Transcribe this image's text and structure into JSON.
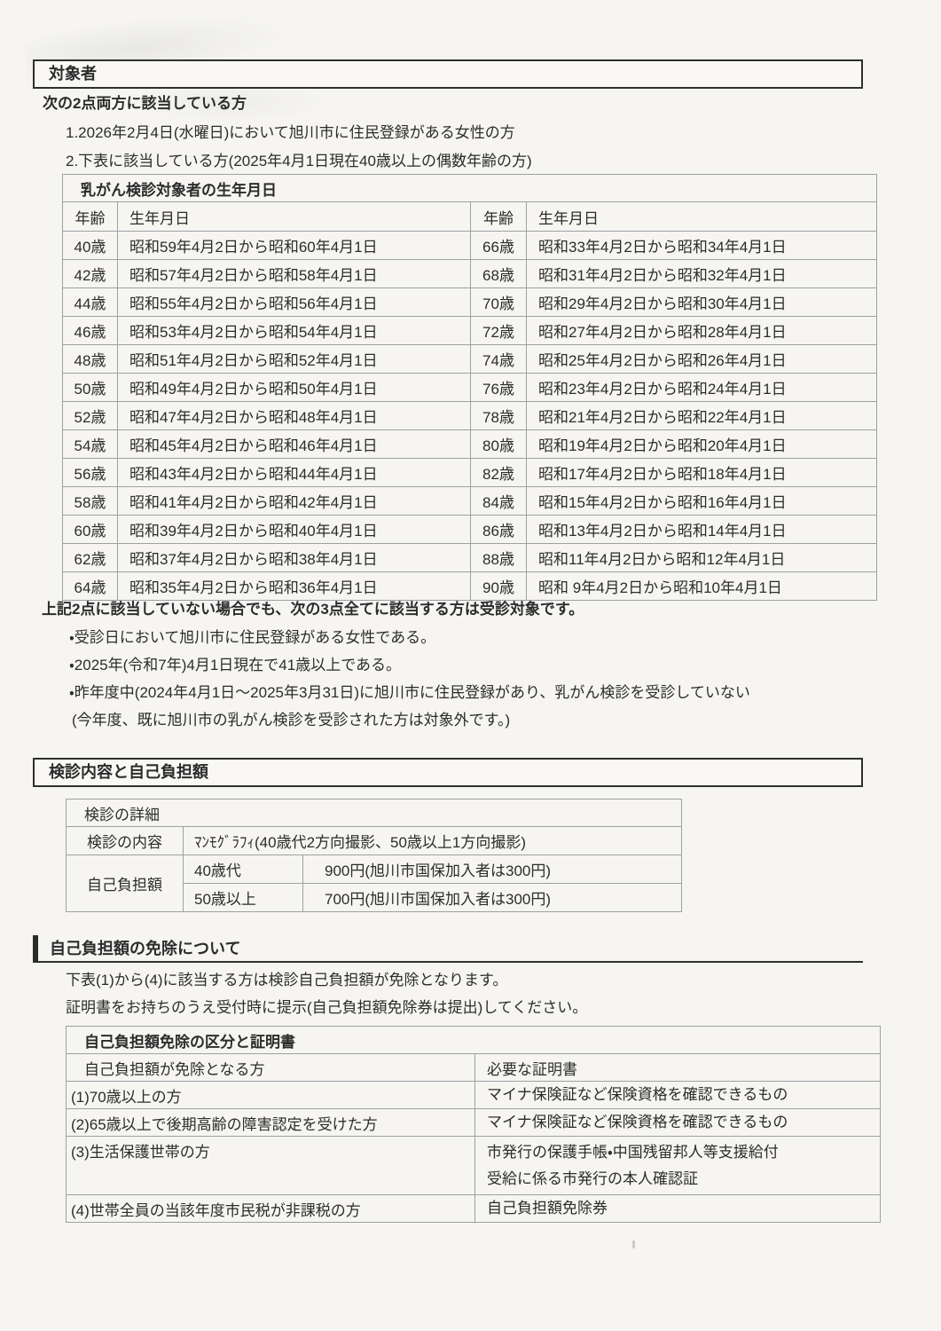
{
  "section1": {
    "heading": "対象者",
    "intro": "次の2点両方に該当している方",
    "items": [
      "1.2026年2月4日(水曜日)において旭川市に住民登録がある女性の方",
      "2.下表に該当している方(2025年4月1日現在40歳以上の偶数年齢の方)"
    ],
    "table": {
      "title": "乳がん検診対象者の生年月日",
      "headers": [
        "年齢",
        "生年月日",
        "年齢",
        "生年月日"
      ],
      "rows": [
        [
          "40歳",
          "昭和59年4月2日から昭和60年4月1日",
          "66歳",
          "昭和33年4月2日から昭和34年4月1日"
        ],
        [
          "42歳",
          "昭和57年4月2日から昭和58年4月1日",
          "68歳",
          "昭和31年4月2日から昭和32年4月1日"
        ],
        [
          "44歳",
          "昭和55年4月2日から昭和56年4月1日",
          "70歳",
          "昭和29年4月2日から昭和30年4月1日"
        ],
        [
          "46歳",
          "昭和53年4月2日から昭和54年4月1日",
          "72歳",
          "昭和27年4月2日から昭和28年4月1日"
        ],
        [
          "48歳",
          "昭和51年4月2日から昭和52年4月1日",
          "74歳",
          "昭和25年4月2日から昭和26年4月1日"
        ],
        [
          "50歳",
          "昭和49年4月2日から昭和50年4月1日",
          "76歳",
          "昭和23年4月2日から昭和24年4月1日"
        ],
        [
          "52歳",
          "昭和47年4月2日から昭和48年4月1日",
          "78歳",
          "昭和21年4月2日から昭和22年4月1日"
        ],
        [
          "54歳",
          "昭和45年4月2日から昭和46年4月1日",
          "80歳",
          "昭和19年4月2日から昭和20年4月1日"
        ],
        [
          "56歳",
          "昭和43年4月2日から昭和44年4月1日",
          "82歳",
          "昭和17年4月2日から昭和18年4月1日"
        ],
        [
          "58歳",
          "昭和41年4月2日から昭和42年4月1日",
          "84歳",
          "昭和15年4月2日から昭和16年4月1日"
        ],
        [
          "60歳",
          "昭和39年4月2日から昭和40年4月1日",
          "86歳",
          "昭和13年4月2日から昭和14年4月1日"
        ],
        [
          "62歳",
          "昭和37年4月2日から昭和38年4月1日",
          "88歳",
          "昭和11年4月2日から昭和12年4月1日"
        ],
        [
          "64歳",
          "昭和35年4月2日から昭和36年4月1日",
          "90歳",
          "昭和 9年4月2日から昭和10年4月1日"
        ]
      ]
    },
    "note": "上記2点に該当していない場合でも、次の3点全てに該当する方は受診対象です。",
    "bullets": [
      "・受診日において旭川市に住民登録がある女性である。",
      "・2025年(令和7年)4月1日現在で41歳以上である。",
      "・昨年度中(2024年4月1日～2025年3月31日)に旭川市に住民登録があり、乳がん検診を受診していない",
      "(今年度、既に旭川市の乳がん検診を受診された方は対象外です。)"
    ]
  },
  "section2": {
    "heading": "検診内容と自己負担額",
    "table": {
      "title": "検診の詳細",
      "content_label": "検診の内容",
      "content_value": "ﾏﾝﾓｸﾞﾗﾌｨ(40歳代2方向撮影、50歳以上1方向撮影)",
      "copay_label": "自己負担額",
      "copay_rows": [
        [
          "40歳代",
          "900円(旭川市国保加入者は300円)"
        ],
        [
          "50歳以上",
          "700円(旭川市国保加入者は300円)"
        ]
      ]
    }
  },
  "section3": {
    "heading": "自己負担額の免除について",
    "lines": [
      "下表(1)から(4)に該当する方は検診自己負担額が免除となります。",
      "証明書をお持ちのうえ受付時に提示(自己負担額免除券は提出)してください。"
    ],
    "table": {
      "title": "自己負担額免除の区分と証明書",
      "headers": [
        "自己負担額が免除となる方",
        "必要な証明書"
      ],
      "rows": [
        {
          "who": "(1)70歳以上の方",
          "cert": [
            "マイナ保険証など保険資格を確認できるもの"
          ]
        },
        {
          "who": "(2)65歳以上で後期高齢の障害認定を受けた方",
          "cert": [
            "マイナ保険証など保険資格を確認できるもの"
          ]
        },
        {
          "who": "(3)生活保護世帯の方",
          "cert": [
            "市発行の保護手帳・中国残留邦人等支援給付",
            "受給に係る市発行の本人確認証"
          ]
        },
        {
          "who": "(4)世帯全員の当該年度市民税が非課税の方",
          "cert": [
            "自己負担額免除券"
          ]
        }
      ]
    }
  }
}
